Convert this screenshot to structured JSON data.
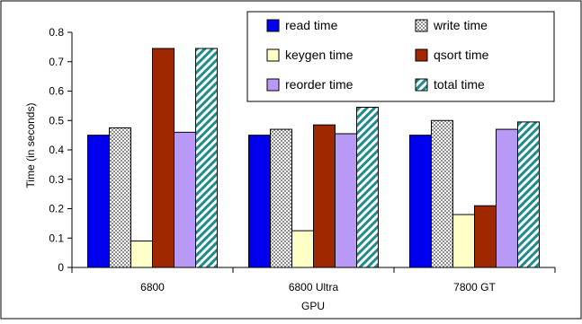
{
  "chart_data": {
    "type": "bar",
    "title": "",
    "xlabel": "GPU",
    "ylabel": "Time (in seconds)",
    "ylim": [
      0,
      0.8
    ],
    "yticks": [
      "0",
      "0.1",
      "0.2",
      "0.3",
      "0.4",
      "0.5",
      "0.6",
      "0.7",
      "0.8"
    ],
    "grid": false,
    "legend_position": "top-right",
    "categories": [
      "6800",
      "6800 Ultra",
      "7800 GT"
    ],
    "series": [
      {
        "name": "read time",
        "values": [
          0.45,
          0.45,
          0.45
        ],
        "color": "#0000ee",
        "pattern": "solid"
      },
      {
        "name": "write time",
        "values": [
          0.475,
          0.47,
          0.5
        ],
        "color": "#b4b4b4",
        "pattern": "grid"
      },
      {
        "name": "keygen time",
        "values": [
          0.09,
          0.125,
          0.18
        ],
        "color": "#ffffc8",
        "pattern": "solid"
      },
      {
        "name": "qsort time",
        "values": [
          0.745,
          0.485,
          0.21
        ],
        "color": "#a02800",
        "pattern": "solid"
      },
      {
        "name": "reorder time",
        "values": [
          0.46,
          0.455,
          0.47
        ],
        "color": "#b899f5",
        "pattern": "solid"
      },
      {
        "name": "total time",
        "values": [
          0.745,
          0.545,
          0.495
        ],
        "color": "#1e8c8c",
        "pattern": "diagonal"
      }
    ]
  }
}
